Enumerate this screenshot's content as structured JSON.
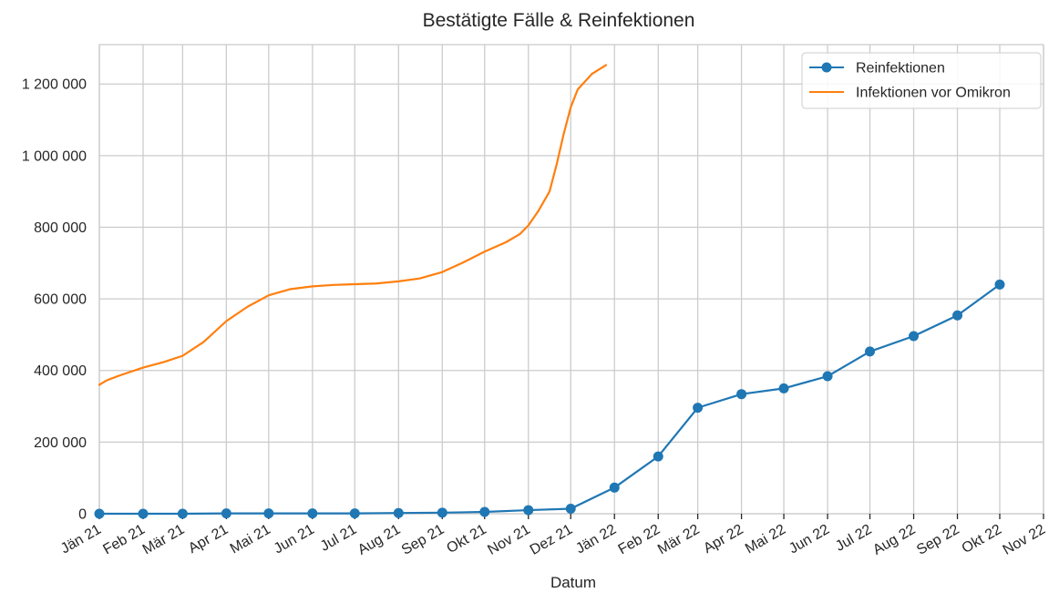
{
  "chart_data": {
    "type": "line",
    "title": "Bestätigte Fälle & Reinfektionen",
    "xlabel": "Datum",
    "ylabel": "",
    "ylim": [
      0,
      1310000
    ],
    "xlim": [
      "2021-01-01",
      "2022-11-01"
    ],
    "grid": true,
    "legend_position": "top-right",
    "y_ticks": [
      0,
      200000,
      400000,
      600000,
      800000,
      1000000,
      1200000
    ],
    "y_tick_labels": [
      "0",
      "200 000",
      "400 000",
      "600 000",
      "800 000",
      "1 000 000",
      "1 200 000"
    ],
    "x_ticks": [
      "2021-01-01",
      "2021-02-01",
      "2021-03-01",
      "2021-04-01",
      "2021-05-01",
      "2021-06-01",
      "2021-07-01",
      "2021-08-01",
      "2021-09-01",
      "2021-10-01",
      "2021-11-01",
      "2021-12-01",
      "2022-01-01",
      "2022-02-01",
      "2022-03-01",
      "2022-04-01",
      "2022-05-01",
      "2022-06-01",
      "2022-07-01",
      "2022-08-01",
      "2022-09-01",
      "2022-10-01",
      "2022-11-01"
    ],
    "x_tick_labels": [
      "Jän 21",
      "Feb 21",
      "Mär 21",
      "Apr 21",
      "Mai 21",
      "Jun 21",
      "Jul 21",
      "Aug 21",
      "Sep 21",
      "Okt 21",
      "Nov 21",
      "Dez 21",
      "Jän 22",
      "Feb 22",
      "Mär 22",
      "Apr 22",
      "Mai 22",
      "Jun 22",
      "Jul 22",
      "Aug 22",
      "Sep 22",
      "Okt 22",
      "Nov 22"
    ],
    "series": [
      {
        "name": "Reinfektionen",
        "color": "#1f77b4",
        "marker": "circle",
        "x": [
          "2021-01-01",
          "2021-02-01",
          "2021-03-01",
          "2021-04-01",
          "2021-05-01",
          "2021-06-01",
          "2021-07-01",
          "2021-08-01",
          "2021-09-01",
          "2021-10-01",
          "2021-11-01",
          "2021-12-01",
          "2022-01-01",
          "2022-02-01",
          "2022-03-01",
          "2022-04-01",
          "2022-05-01",
          "2022-06-01",
          "2022-07-01",
          "2022-08-01",
          "2022-09-01",
          "2022-10-01"
        ],
        "values": [
          0,
          0,
          0,
          1000,
          1000,
          1000,
          1000,
          2000,
          3000,
          5000,
          10000,
          14000,
          73000,
          160000,
          296000,
          334000,
          350000,
          384000,
          453000,
          496000,
          554000,
          640000
        ]
      },
      {
        "name": "Infektionen vor Omikron",
        "color": "#ff7f0e",
        "marker": "none",
        "x": [
          "2021-01-01",
          "2021-01-06",
          "2021-01-16",
          "2021-02-01",
          "2021-02-16",
          "2021-03-01",
          "2021-03-16",
          "2021-04-01",
          "2021-04-16",
          "2021-05-01",
          "2021-05-16",
          "2021-06-01",
          "2021-06-16",
          "2021-07-01",
          "2021-07-16",
          "2021-08-01",
          "2021-08-16",
          "2021-09-01",
          "2021-09-16",
          "2021-10-01",
          "2021-10-16",
          "2021-10-26",
          "2021-11-01",
          "2021-11-08",
          "2021-11-16",
          "2021-11-21",
          "2021-11-26",
          "2021-12-01",
          "2021-12-06",
          "2021-12-16",
          "2021-12-26"
        ],
        "values": [
          360000,
          372000,
          387000,
          408000,
          424000,
          441000,
          480000,
          538000,
          578000,
          610000,
          627000,
          635000,
          639000,
          641000,
          643000,
          649000,
          657000,
          675000,
          702000,
          732000,
          758000,
          781000,
          805000,
          845000,
          900000,
          975000,
          1060000,
          1135000,
          1185000,
          1228000,
          1253000
        ]
      }
    ]
  }
}
